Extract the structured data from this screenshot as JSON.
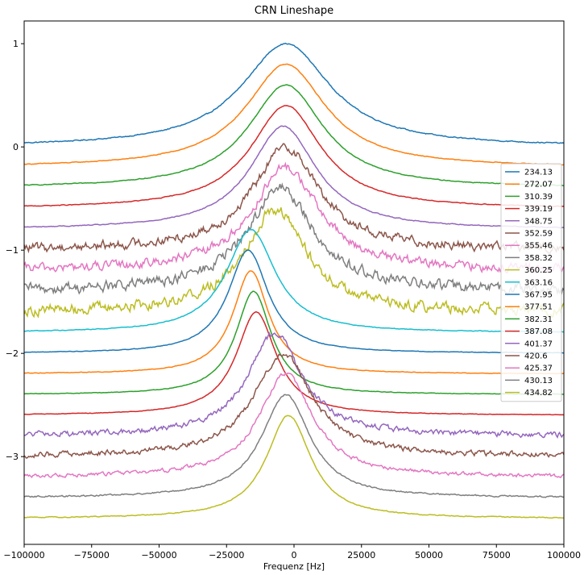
{
  "chart_data": {
    "type": "line",
    "title": "CRN Lineshape",
    "xlabel": "Frequenz [Hz]",
    "ylabel": "",
    "xlim": [
      -100000,
      100000
    ],
    "ylim": [
      -3.85,
      1.22
    ],
    "xticks": [
      -100000,
      -75000,
      -50000,
      -25000,
      0,
      25000,
      50000,
      75000,
      100000
    ],
    "xtick_labels": [
      "−100000",
      "−75000",
      "−50000",
      "−25000",
      "0",
      "25000",
      "50000",
      "75000",
      "100000"
    ],
    "yticks": [
      1,
      0,
      -1,
      -2,
      -3
    ],
    "ytick_labels": [
      "1",
      "0",
      "−1",
      "−2",
      "−3"
    ],
    "grid": false,
    "legend_position": "right",
    "series": [
      {
        "name": "234.13",
        "color": "#1f77b4",
        "offset": 0.0,
        "center": -3000,
        "width": 20000,
        "noise": 0.006
      },
      {
        "name": "272.07",
        "color": "#ff7f0e",
        "offset": -0.2,
        "center": -3000,
        "width": 18000,
        "noise": 0.004
      },
      {
        "name": "310.39",
        "color": "#2ca02c",
        "offset": -0.4,
        "center": -3000,
        "width": 17000,
        "noise": 0.004
      },
      {
        "name": "339.19",
        "color": "#d62728",
        "offset": -0.6,
        "center": -3000,
        "width": 16000,
        "noise": 0.004
      },
      {
        "name": "348.75",
        "color": "#9467bd",
        "offset": -0.8,
        "center": -4000,
        "width": 15000,
        "noise": 0.005
      },
      {
        "name": "352.59",
        "color": "#8c564b",
        "offset": -1.0,
        "center": -3000,
        "width": 15000,
        "noise": 0.05
      },
      {
        "name": "355.46",
        "color": "#e377c2",
        "offset": -1.2,
        "center": -3000,
        "width": 15000,
        "noise": 0.05
      },
      {
        "name": "358.32",
        "color": "#7f7f7f",
        "offset": -1.4,
        "center": -5000,
        "width": 15000,
        "noise": 0.06
      },
      {
        "name": "360.25",
        "color": "#bcbd22",
        "offset": -1.6,
        "center": -7000,
        "width": 14000,
        "noise": 0.06
      },
      {
        "name": "363.16",
        "color": "#17becf",
        "offset": -1.8,
        "center": -16000,
        "width": 11000,
        "noise": 0.004
      },
      {
        "name": "367.95",
        "color": "#1f77b4",
        "offset": -2.0,
        "center": -17000,
        "width": 9000,
        "noise": 0.003
      },
      {
        "name": "377.51",
        "color": "#ff7f0e",
        "offset": -2.2,
        "center": -16000,
        "width": 8000,
        "noise": 0.003
      },
      {
        "name": "382.31",
        "color": "#2ca02c",
        "offset": -2.4,
        "center": -15000,
        "width": 8000,
        "noise": 0.003
      },
      {
        "name": "387.08",
        "color": "#d62728",
        "offset": -2.6,
        "center": -14000,
        "width": 9000,
        "noise": 0.003
      },
      {
        "name": "401.37",
        "color": "#9467bd",
        "offset": -2.8,
        "center": -7000,
        "width": 12000,
        "noise": 0.03
      },
      {
        "name": "420.6",
        "color": "#8c564b",
        "offset": -3.0,
        "center": -4000,
        "width": 13000,
        "noise": 0.03
      },
      {
        "name": "425.37",
        "color": "#e377c2",
        "offset": -3.2,
        "center": -3000,
        "width": 12000,
        "noise": 0.02
      },
      {
        "name": "430.13",
        "color": "#7f7f7f",
        "offset": -3.4,
        "center": -3000,
        "width": 11000,
        "noise": 0.008
      },
      {
        "name": "434.82",
        "color": "#bcbd22",
        "offset": -3.6,
        "center": -2000,
        "width": 10000,
        "noise": 0.005
      }
    ]
  }
}
